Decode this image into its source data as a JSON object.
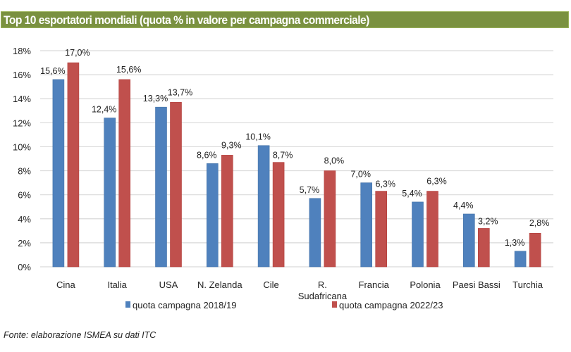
{
  "title": "Top 10 esportatori mondiali (quota % in valore per campagna commerciale)",
  "source": "Fonte: elaborazione ISMEA su dati ITC",
  "colors": {
    "title_bg": "#7a9140",
    "series_2018_19": "#4f81bd",
    "series_2022_23": "#c0504d",
    "gridline": "#d9d9d9"
  },
  "chart_data": {
    "type": "bar",
    "title": "Top 10 esportatori mondiali (quota % in valore per campagna commerciale)",
    "xlabel": "",
    "ylabel": "",
    "ylim": [
      0,
      18
    ],
    "yticks": [
      0,
      2,
      4,
      6,
      8,
      10,
      12,
      14,
      16,
      18
    ],
    "ytick_labels": [
      "0%",
      "2%",
      "4%",
      "6%",
      "8%",
      "10%",
      "12%",
      "14%",
      "16%",
      "18%"
    ],
    "grid": true,
    "legend_position": "bottom",
    "categories": [
      "Cina",
      "Italia",
      "USA",
      "N. Zelanda",
      "Cile",
      "R. Sudafricana",
      "Francia",
      "Polonia",
      "Paesi Bassi",
      "Turchia"
    ],
    "category_lines": [
      [
        "Cina"
      ],
      [
        "Italia"
      ],
      [
        "USA"
      ],
      [
        "N. Zelanda"
      ],
      [
        "Cile"
      ],
      [
        "R.",
        "Sudafricana"
      ],
      [
        "Francia"
      ],
      [
        "Polonia"
      ],
      [
        "Paesi Bassi"
      ],
      [
        "Turchia"
      ]
    ],
    "series": [
      {
        "name": "quota campagna 2018/19",
        "color": "#4f81bd",
        "values": [
          15.6,
          12.4,
          13.3,
          8.6,
          10.1,
          5.7,
          7.0,
          5.4,
          4.4,
          1.3
        ],
        "labels": [
          "15,6%",
          "12,4%",
          "13,3%",
          "8,6%",
          "10,1%",
          "5,7%",
          "7,0%",
          "5,4%",
          "4,4%",
          "1,3%"
        ]
      },
      {
        "name": "quota campagna 2022/23",
        "color": "#c0504d",
        "values": [
          17.0,
          15.6,
          13.7,
          9.3,
          8.7,
          8.0,
          6.3,
          6.3,
          3.2,
          2.8
        ],
        "labels": [
          "17,0%",
          "15,6%",
          "13,7%",
          "9,3%",
          "8,7%",
          "8,0%",
          "6,3%",
          "6,3%",
          "3,2%",
          "2,8%"
        ]
      }
    ]
  }
}
